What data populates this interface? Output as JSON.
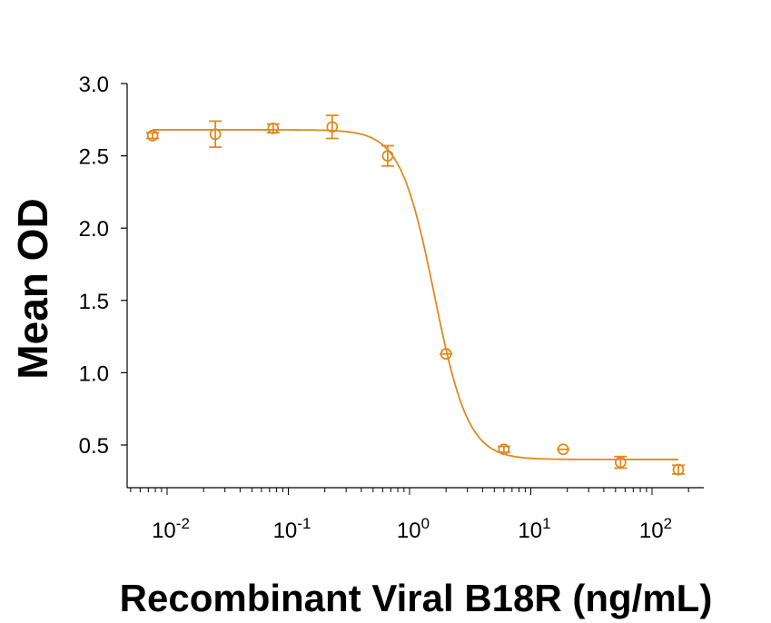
{
  "chart_data": {
    "type": "scatter",
    "xlabel": "Recombinant Viral B18R (ng/mL)",
    "ylabel": "Mean OD",
    "x_scale": "log",
    "xlim": [
      0.0055,
      280
    ],
    "ylim": [
      0.28,
      3.0
    ],
    "x_tick_labels": [
      {
        "base": "10",
        "exp": "-2",
        "value": 0.01
      },
      {
        "base": "10",
        "exp": "-1",
        "value": 0.1
      },
      {
        "base": "10",
        "exp": "0",
        "value": 1
      },
      {
        "base": "10",
        "exp": "1",
        "value": 10
      },
      {
        "base": "10",
        "exp": "2",
        "value": 100
      }
    ],
    "y_ticks": [
      {
        "label": "0.5",
        "value": 0.5
      },
      {
        "label": "1.0",
        "value": 1.0
      },
      {
        "label": "1.5",
        "value": 1.5
      },
      {
        "label": "2.0",
        "value": 2.0
      },
      {
        "label": "2.5",
        "value": 2.5
      },
      {
        "label": "3.0",
        "value": 3.0
      }
    ],
    "points": [
      {
        "x": 0.0076,
        "y": 2.64,
        "err": 0.02
      },
      {
        "x": 0.025,
        "y": 2.65,
        "err": 0.09
      },
      {
        "x": 0.075,
        "y": 2.69,
        "err": 0.03
      },
      {
        "x": 0.23,
        "y": 2.7,
        "err": 0.08
      },
      {
        "x": 0.66,
        "y": 2.5,
        "err": 0.07
      },
      {
        "x": 2.0,
        "y": 1.13,
        "err": 0.01
      },
      {
        "x": 6.0,
        "y": 0.47,
        "err": 0.02
      },
      {
        "x": 18.5,
        "y": 0.47,
        "err": 0.01
      },
      {
        "x": 55,
        "y": 0.38,
        "err": 0.04
      },
      {
        "x": 165,
        "y": 0.33,
        "err": 0.03
      }
    ],
    "fit": {
      "model": "4PL",
      "top": 2.68,
      "bottom": 0.4,
      "ec50": 1.6,
      "hill": 3.1
    },
    "color": "#E08A1E",
    "grid": false,
    "legend": "none"
  }
}
